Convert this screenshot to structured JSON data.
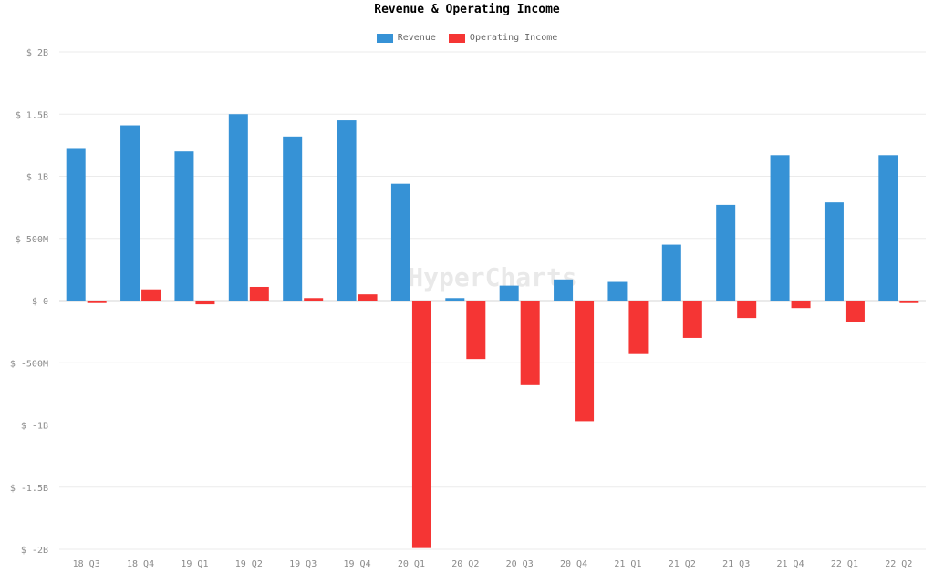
{
  "chart_data": {
    "type": "bar",
    "title": "Revenue & Operating Income",
    "watermark": "HyperCharts",
    "categories": [
      "18 Q3",
      "18 Q4",
      "19 Q1",
      "19 Q2",
      "19 Q3",
      "19 Q4",
      "20 Q1",
      "20 Q2",
      "20 Q3",
      "20 Q4",
      "21 Q1",
      "21 Q2",
      "21 Q3",
      "21 Q4",
      "22 Q1",
      "22 Q2"
    ],
    "series": [
      {
        "name": "Revenue",
        "color": "#3692d6",
        "values": [
          1.22,
          1.41,
          1.2,
          1.5,
          1.32,
          1.45,
          0.94,
          0.02,
          0.12,
          0.17,
          0.15,
          0.45,
          0.77,
          1.17,
          0.79,
          1.17
        ]
      },
      {
        "name": "Operating Income",
        "color": "#f53534",
        "values": [
          -0.02,
          0.09,
          -0.03,
          0.11,
          0.02,
          0.05,
          -1.99,
          -0.47,
          -0.68,
          -0.97,
          -0.43,
          -0.3,
          -0.14,
          -0.06,
          -0.17,
          -0.02
        ]
      }
    ],
    "unit": "billions USD",
    "ylim": [
      -2,
      2
    ],
    "yticks": [
      {
        "value": 2,
        "label": "$ 2B"
      },
      {
        "value": 1.5,
        "label": "$ 1.5B"
      },
      {
        "value": 1,
        "label": "$ 1B"
      },
      {
        "value": 0.5,
        "label": "$ 500M"
      },
      {
        "value": 0,
        "label": "$ 0"
      },
      {
        "value": -0.5,
        "label": "$ -500M"
      },
      {
        "value": -1,
        "label": "$ -1B"
      },
      {
        "value": -1.5,
        "label": "$ -1.5B"
      },
      {
        "value": -2,
        "label": "$ -2B"
      }
    ],
    "grid": true,
    "legend_position": "top"
  }
}
